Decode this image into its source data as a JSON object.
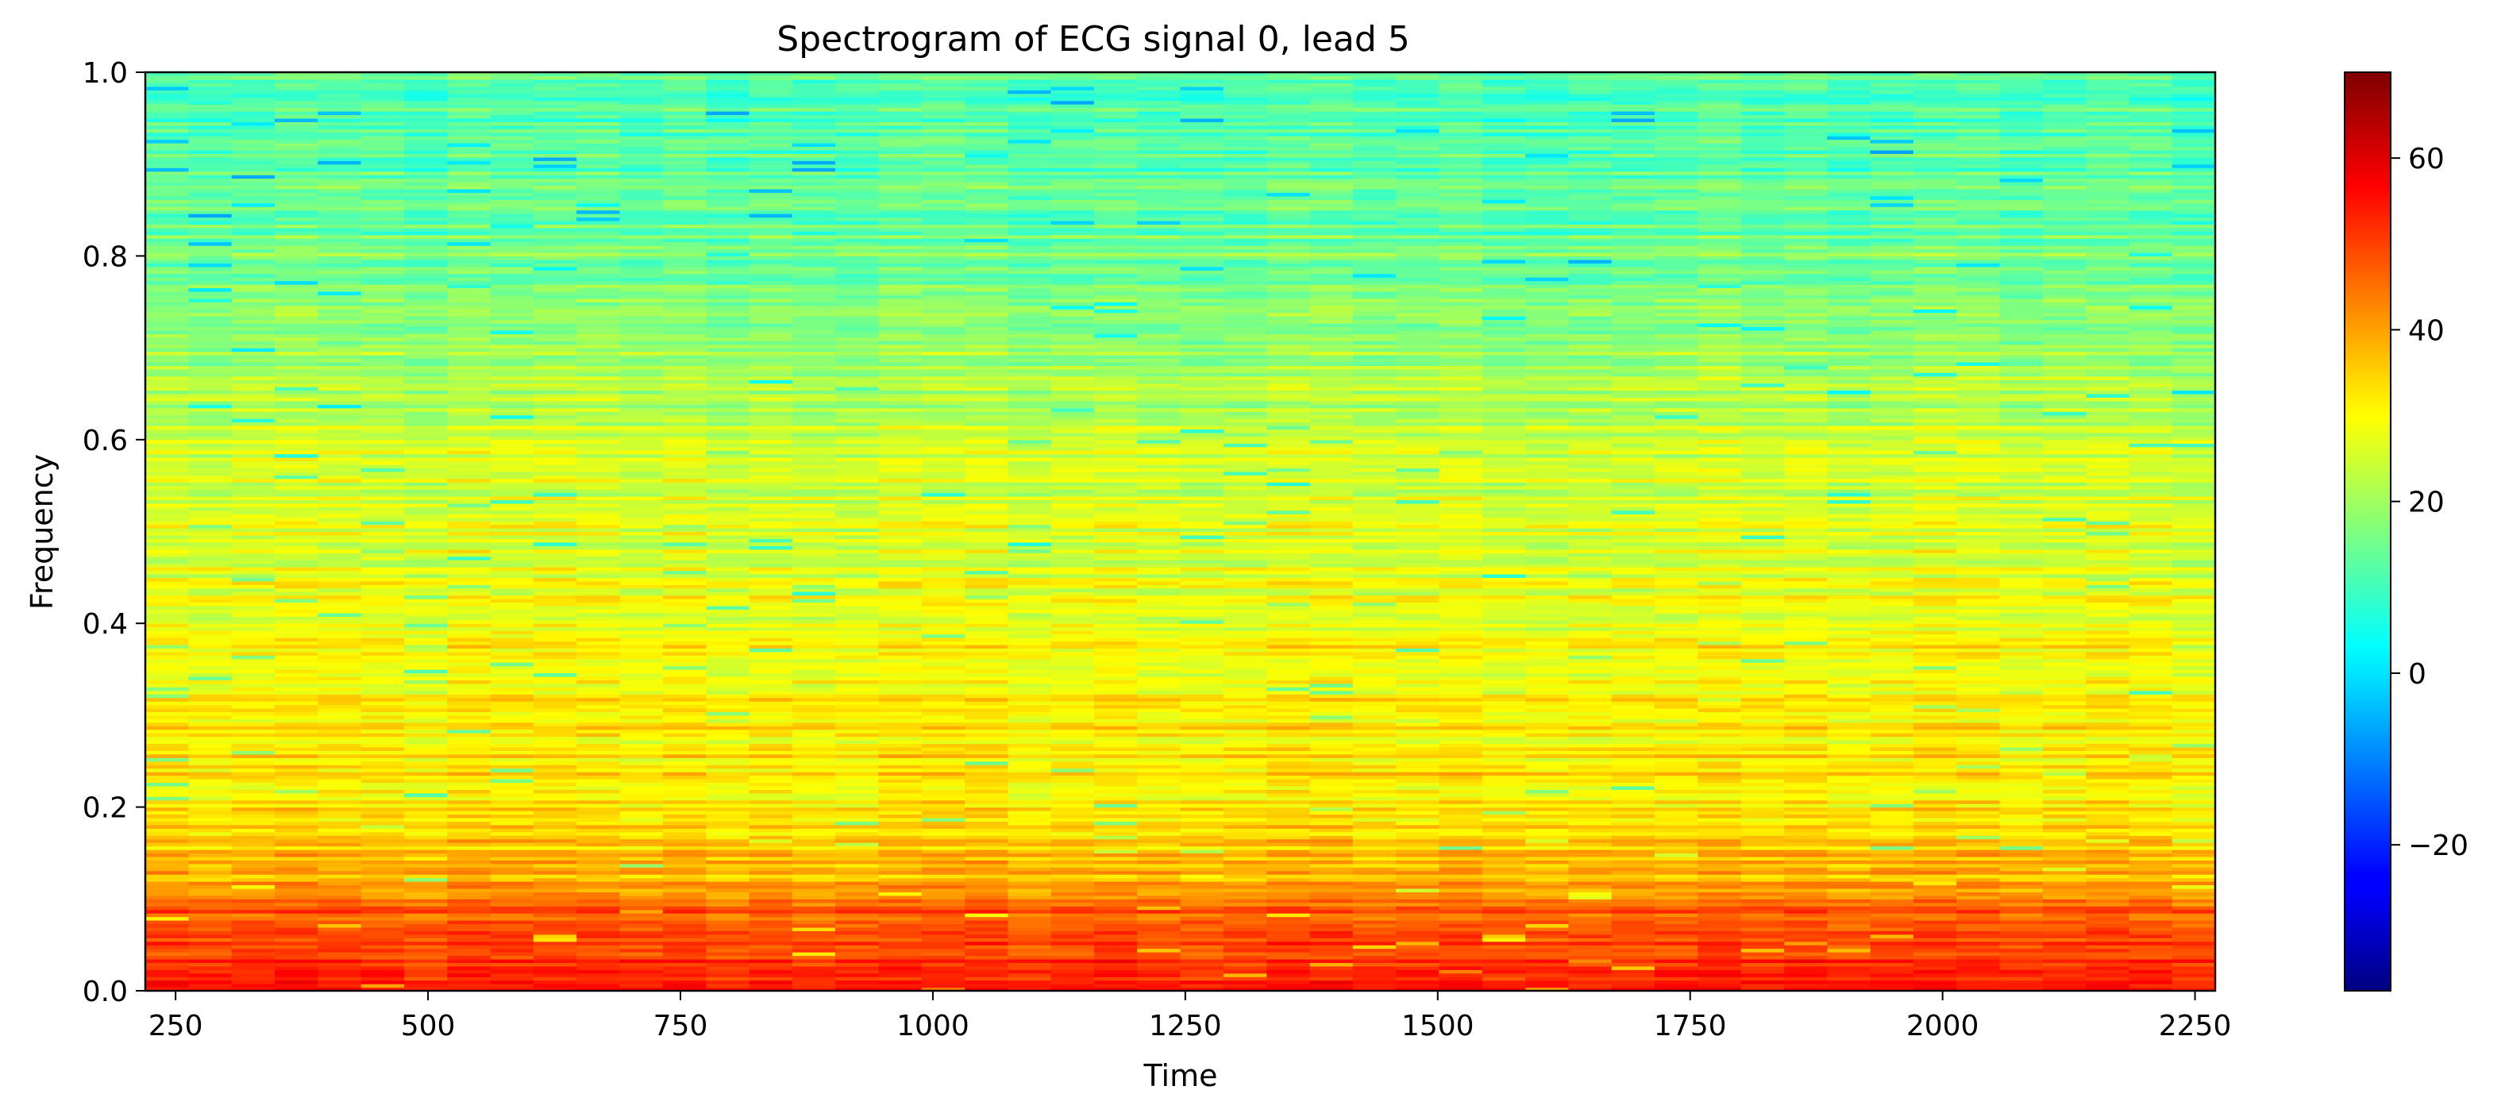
{
  "chart_data": {
    "type": "heatmap",
    "title": "Spectrogram of ECG signal 0, lead 5",
    "xlabel": "Time",
    "ylabel": "Frequency",
    "xlim": [
      220,
      2270
    ],
    "ylim": [
      0.0,
      1.0
    ],
    "x_ticks": [
      250,
      500,
      750,
      1000,
      1250,
      1500,
      1750,
      2000,
      2250
    ],
    "x_tick_labels": [
      "250",
      "500",
      "750",
      "1000",
      "1250",
      "1500",
      "1750",
      "2000",
      "2250"
    ],
    "y_ticks": [
      0.0,
      0.2,
      0.4,
      0.6,
      0.8,
      1.0
    ],
    "y_tick_labels": [
      "0.0",
      "0.2",
      "0.4",
      "0.6",
      "0.8",
      "1.0"
    ],
    "colormap": "jet",
    "colorbar": {
      "range": [
        -37,
        70
      ],
      "ticks": [
        -20,
        0,
        20,
        40,
        60
      ],
      "tick_labels": [
        "−20",
        "0",
        "20",
        "40",
        "60"
      ]
    },
    "frequency_profile": {
      "frequency": [
        0.0,
        0.02,
        0.05,
        0.09,
        0.12,
        0.18,
        0.25,
        0.35,
        0.45,
        0.55,
        0.65,
        0.75,
        0.85,
        0.95,
        1.0
      ],
      "power_db": [
        55,
        50,
        50,
        47,
        38,
        34,
        32,
        31,
        27,
        26,
        22,
        17,
        14,
        12,
        12
      ]
    },
    "grid": false,
    "legend": "none"
  }
}
